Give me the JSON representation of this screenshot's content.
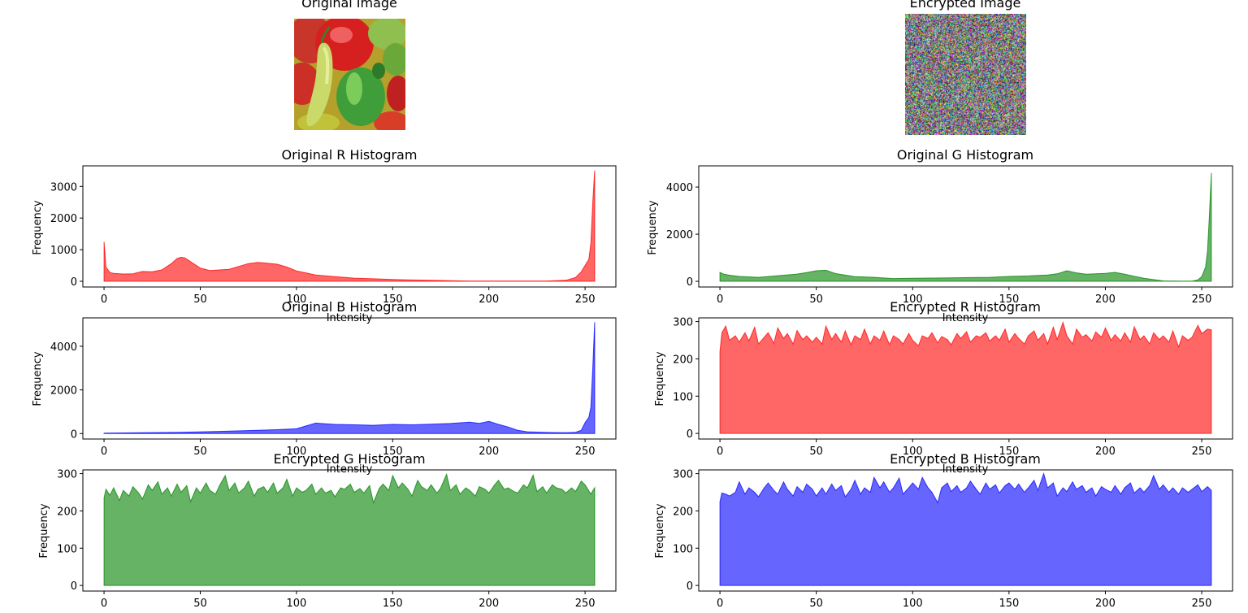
{
  "images": {
    "original_title": "Original Image",
    "encrypted_title": "Encrypted Image"
  },
  "colors": {
    "red": "#ff0000",
    "green": "#008000",
    "blue": "#0000ff",
    "fill_alpha": 0.6
  },
  "chart_data": [
    {
      "type": "area",
      "title": "Original R Histogram",
      "xlabel": "Intensity",
      "ylabel": "Frequency",
      "color": "red",
      "xlim": [
        -11,
        266
      ],
      "ylim": [
        -180,
        3650
      ],
      "xticks": [
        0,
        50,
        100,
        150,
        200,
        250
      ],
      "yticks": [
        0,
        1000,
        2000,
        3000
      ],
      "x": [
        0,
        1,
        3,
        5,
        10,
        15,
        20,
        25,
        30,
        35,
        38,
        40,
        42,
        45,
        50,
        55,
        60,
        65,
        70,
        75,
        80,
        85,
        90,
        95,
        100,
        110,
        120,
        130,
        140,
        150,
        160,
        170,
        180,
        190,
        200,
        210,
        220,
        230,
        240,
        245,
        248,
        250,
        252,
        253,
        254,
        255
      ],
      "y": [
        1250,
        450,
        280,
        250,
        230,
        240,
        310,
        300,
        360,
        560,
        720,
        760,
        740,
        620,
        420,
        340,
        360,
        380,
        470,
        560,
        600,
        570,
        540,
        450,
        330,
        200,
        150,
        100,
        80,
        60,
        40,
        30,
        20,
        10,
        10,
        10,
        10,
        10,
        30,
        120,
        300,
        500,
        700,
        1200,
        2500,
        3500
      ]
    },
    {
      "type": "area",
      "title": "Original G Histogram",
      "xlabel": "Intensity",
      "ylabel": "Frequency",
      "color": "green",
      "xlim": [
        -11,
        266
      ],
      "ylim": [
        -240,
        4900
      ],
      "xticks": [
        0,
        50,
        100,
        150,
        200,
        250
      ],
      "yticks": [
        0,
        2000,
        4000
      ],
      "x": [
        0,
        2,
        5,
        10,
        20,
        30,
        40,
        45,
        50,
        55,
        60,
        70,
        80,
        90,
        100,
        110,
        120,
        130,
        140,
        150,
        160,
        170,
        175,
        180,
        185,
        190,
        200,
        205,
        210,
        220,
        230,
        240,
        245,
        248,
        250,
        252,
        253,
        254,
        255
      ],
      "y": [
        380,
        300,
        260,
        210,
        170,
        240,
        310,
        370,
        450,
        470,
        330,
        200,
        170,
        120,
        130,
        140,
        150,
        160,
        170,
        210,
        230,
        270,
        320,
        450,
        360,
        300,
        340,
        380,
        300,
        130,
        20,
        10,
        10,
        60,
        200,
        600,
        1300,
        2800,
        4600
      ]
    },
    {
      "type": "area",
      "title": "Original B Histogram",
      "xlabel": "Intensity",
      "ylabel": "Frequency",
      "color": "blue",
      "xlim": [
        -11,
        266
      ],
      "ylim": [
        -250,
        5300
      ],
      "xticks": [
        0,
        50,
        100,
        150,
        200,
        250
      ],
      "yticks": [
        0,
        2000,
        4000
      ],
      "x": [
        0,
        20,
        40,
        60,
        80,
        90,
        100,
        105,
        110,
        115,
        120,
        130,
        140,
        150,
        160,
        170,
        180,
        190,
        195,
        200,
        205,
        210,
        215,
        220,
        230,
        240,
        245,
        248,
        250,
        252,
        253,
        254,
        255
      ],
      "y": [
        20,
        40,
        60,
        100,
        150,
        180,
        220,
        350,
        480,
        450,
        420,
        400,
        380,
        420,
        400,
        430,
        460,
        520,
        470,
        560,
        420,
        300,
        150,
        80,
        50,
        40,
        60,
        150,
        500,
        750,
        1200,
        3000,
        5100
      ]
    },
    {
      "type": "area",
      "title": "Encrypted R Histogram",
      "xlabel": "Intensity",
      "ylabel": "Frequency",
      "color": "red",
      "xlim": [
        -11,
        266
      ],
      "ylim": [
        -15,
        310
      ],
      "xticks": [
        0,
        50,
        100,
        150,
        200,
        250
      ],
      "yticks": [
        0,
        100,
        200,
        300
      ],
      "x": [
        0,
        1,
        3,
        5,
        8,
        10,
        13,
        15,
        18,
        20,
        23,
        25,
        28,
        30,
        33,
        35,
        38,
        40,
        43,
        45,
        48,
        50,
        53,
        55,
        58,
        60,
        63,
        65,
        68,
        70,
        73,
        75,
        78,
        80,
        83,
        85,
        88,
        90,
        93,
        95,
        98,
        100,
        103,
        105,
        108,
        110,
        113,
        115,
        118,
        120,
        123,
        125,
        128,
        130,
        133,
        135,
        138,
        140,
        143,
        145,
        148,
        150,
        153,
        155,
        158,
        160,
        163,
        165,
        168,
        170,
        173,
        175,
        178,
        180,
        183,
        185,
        188,
        190,
        193,
        195,
        198,
        200,
        203,
        205,
        208,
        210,
        213,
        215,
        218,
        220,
        223,
        225,
        228,
        230,
        233,
        235,
        238,
        240,
        243,
        245,
        248,
        250,
        253,
        255
      ],
      "y": [
        220,
        270,
        288,
        250,
        262,
        245,
        270,
        248,
        285,
        240,
        258,
        270,
        242,
        283,
        255,
        268,
        240,
        276,
        252,
        262,
        245,
        258,
        240,
        288,
        252,
        268,
        245,
        275,
        238,
        262,
        252,
        280,
        240,
        262,
        250,
        275,
        238,
        262,
        252,
        240,
        268,
        250,
        235,
        262,
        255,
        270,
        243,
        260,
        252,
        238,
        268,
        255,
        273,
        245,
        262,
        258,
        270,
        248,
        262,
        250,
        280,
        245,
        268,
        255,
        240,
        262,
        275,
        250,
        268,
        240,
        285,
        252,
        298,
        262,
        240,
        280,
        258,
        265,
        248,
        272,
        258,
        283,
        250,
        265,
        248,
        270,
        245,
        286,
        252,
        262,
        240,
        270,
        252,
        262,
        245,
        275,
        232,
        262,
        250,
        258,
        290,
        268,
        280,
        278
      ]
    },
    {
      "type": "area",
      "title": "Encrypted G Histogram",
      "xlabel": "Intensity",
      "ylabel": "Frequency",
      "color": "green",
      "xlim": [
        -11,
        266
      ],
      "ylim": [
        -15,
        310
      ],
      "xticks": [
        0,
        50,
        100,
        150,
        200,
        250
      ],
      "yticks": [
        0,
        100,
        200,
        300
      ],
      "x": [
        0,
        1,
        3,
        5,
        8,
        10,
        13,
        15,
        18,
        20,
        23,
        25,
        28,
        30,
        33,
        35,
        38,
        40,
        43,
        45,
        48,
        50,
        53,
        55,
        58,
        60,
        63,
        65,
        68,
        70,
        73,
        75,
        78,
        80,
        83,
        85,
        88,
        90,
        93,
        95,
        98,
        100,
        103,
        105,
        108,
        110,
        113,
        115,
        118,
        120,
        123,
        125,
        128,
        130,
        133,
        135,
        138,
        140,
        143,
        145,
        148,
        150,
        153,
        155,
        158,
        160,
        163,
        165,
        168,
        170,
        173,
        175,
        178,
        180,
        183,
        185,
        188,
        190,
        193,
        195,
        198,
        200,
        203,
        205,
        208,
        210,
        213,
        215,
        218,
        220,
        223,
        225,
        228,
        230,
        233,
        235,
        238,
        240,
        243,
        245,
        248,
        250,
        253,
        255
      ],
      "y": [
        235,
        258,
        242,
        262,
        228,
        255,
        240,
        265,
        248,
        232,
        270,
        255,
        278,
        245,
        262,
        240,
        272,
        250,
        268,
        225,
        262,
        248,
        275,
        255,
        245,
        268,
        295,
        255,
        275,
        248,
        262,
        280,
        240,
        258,
        265,
        250,
        275,
        248,
        262,
        285,
        240,
        262,
        250,
        255,
        272,
        245,
        262,
        248,
        255,
        238,
        262,
        258,
        272,
        250,
        260,
        248,
        268,
        222,
        260,
        272,
        255,
        295,
        262,
        275,
        258,
        240,
        282,
        265,
        255,
        270,
        248,
        262,
        298,
        255,
        270,
        245,
        262,
        255,
        240,
        265,
        258,
        248,
        270,
        282,
        258,
        262,
        252,
        248,
        270,
        262,
        296,
        252,
        265,
        248,
        270,
        262,
        258,
        248,
        262,
        252,
        280,
        270,
        245,
        262
      ]
    },
    {
      "type": "area",
      "title": "Encrypted B Histogram",
      "xlabel": "Intensity",
      "ylabel": "Frequency",
      "color": "blue",
      "xlim": [
        -11,
        266
      ],
      "ylim": [
        -15,
        310
      ],
      "xticks": [
        0,
        50,
        100,
        150,
        200,
        250
      ],
      "yticks": [
        0,
        100,
        200,
        300
      ],
      "x": [
        0,
        1,
        3,
        5,
        8,
        10,
        13,
        15,
        18,
        20,
        23,
        25,
        28,
        30,
        33,
        35,
        38,
        40,
        43,
        45,
        48,
        50,
        53,
        55,
        58,
        60,
        63,
        65,
        68,
        70,
        73,
        75,
        78,
        80,
        83,
        85,
        88,
        90,
        93,
        95,
        98,
        100,
        103,
        105,
        108,
        110,
        113,
        115,
        118,
        120,
        123,
        125,
        128,
        130,
        133,
        135,
        138,
        140,
        143,
        145,
        148,
        150,
        153,
        155,
        158,
        160,
        163,
        165,
        168,
        170,
        173,
        175,
        178,
        180,
        183,
        185,
        188,
        190,
        193,
        195,
        198,
        200,
        203,
        205,
        208,
        210,
        213,
        215,
        218,
        220,
        223,
        225,
        228,
        230,
        233,
        235,
        238,
        240,
        243,
        245,
        248,
        250,
        253,
        255
      ],
      "y": [
        225,
        248,
        245,
        240,
        250,
        278,
        245,
        262,
        250,
        238,
        262,
        275,
        255,
        245,
        278,
        258,
        240,
        265,
        250,
        272,
        258,
        240,
        262,
        245,
        272,
        255,
        268,
        238,
        258,
        282,
        245,
        262,
        250,
        290,
        262,
        278,
        250,
        262,
        288,
        245,
        262,
        275,
        258,
        290,
        262,
        250,
        222,
        262,
        275,
        252,
        268,
        250,
        262,
        280,
        258,
        245,
        275,
        258,
        270,
        248,
        268,
        275,
        258,
        272,
        250,
        262,
        282,
        255,
        300,
        262,
        275,
        240,
        262,
        252,
        278,
        258,
        268,
        250,
        262,
        240,
        265,
        258,
        250,
        268,
        245,
        262,
        275,
        248,
        262,
        250,
        268,
        295,
        258,
        270,
        250,
        262,
        245,
        262,
        250,
        258,
        270,
        252,
        265,
        255
      ]
    }
  ]
}
